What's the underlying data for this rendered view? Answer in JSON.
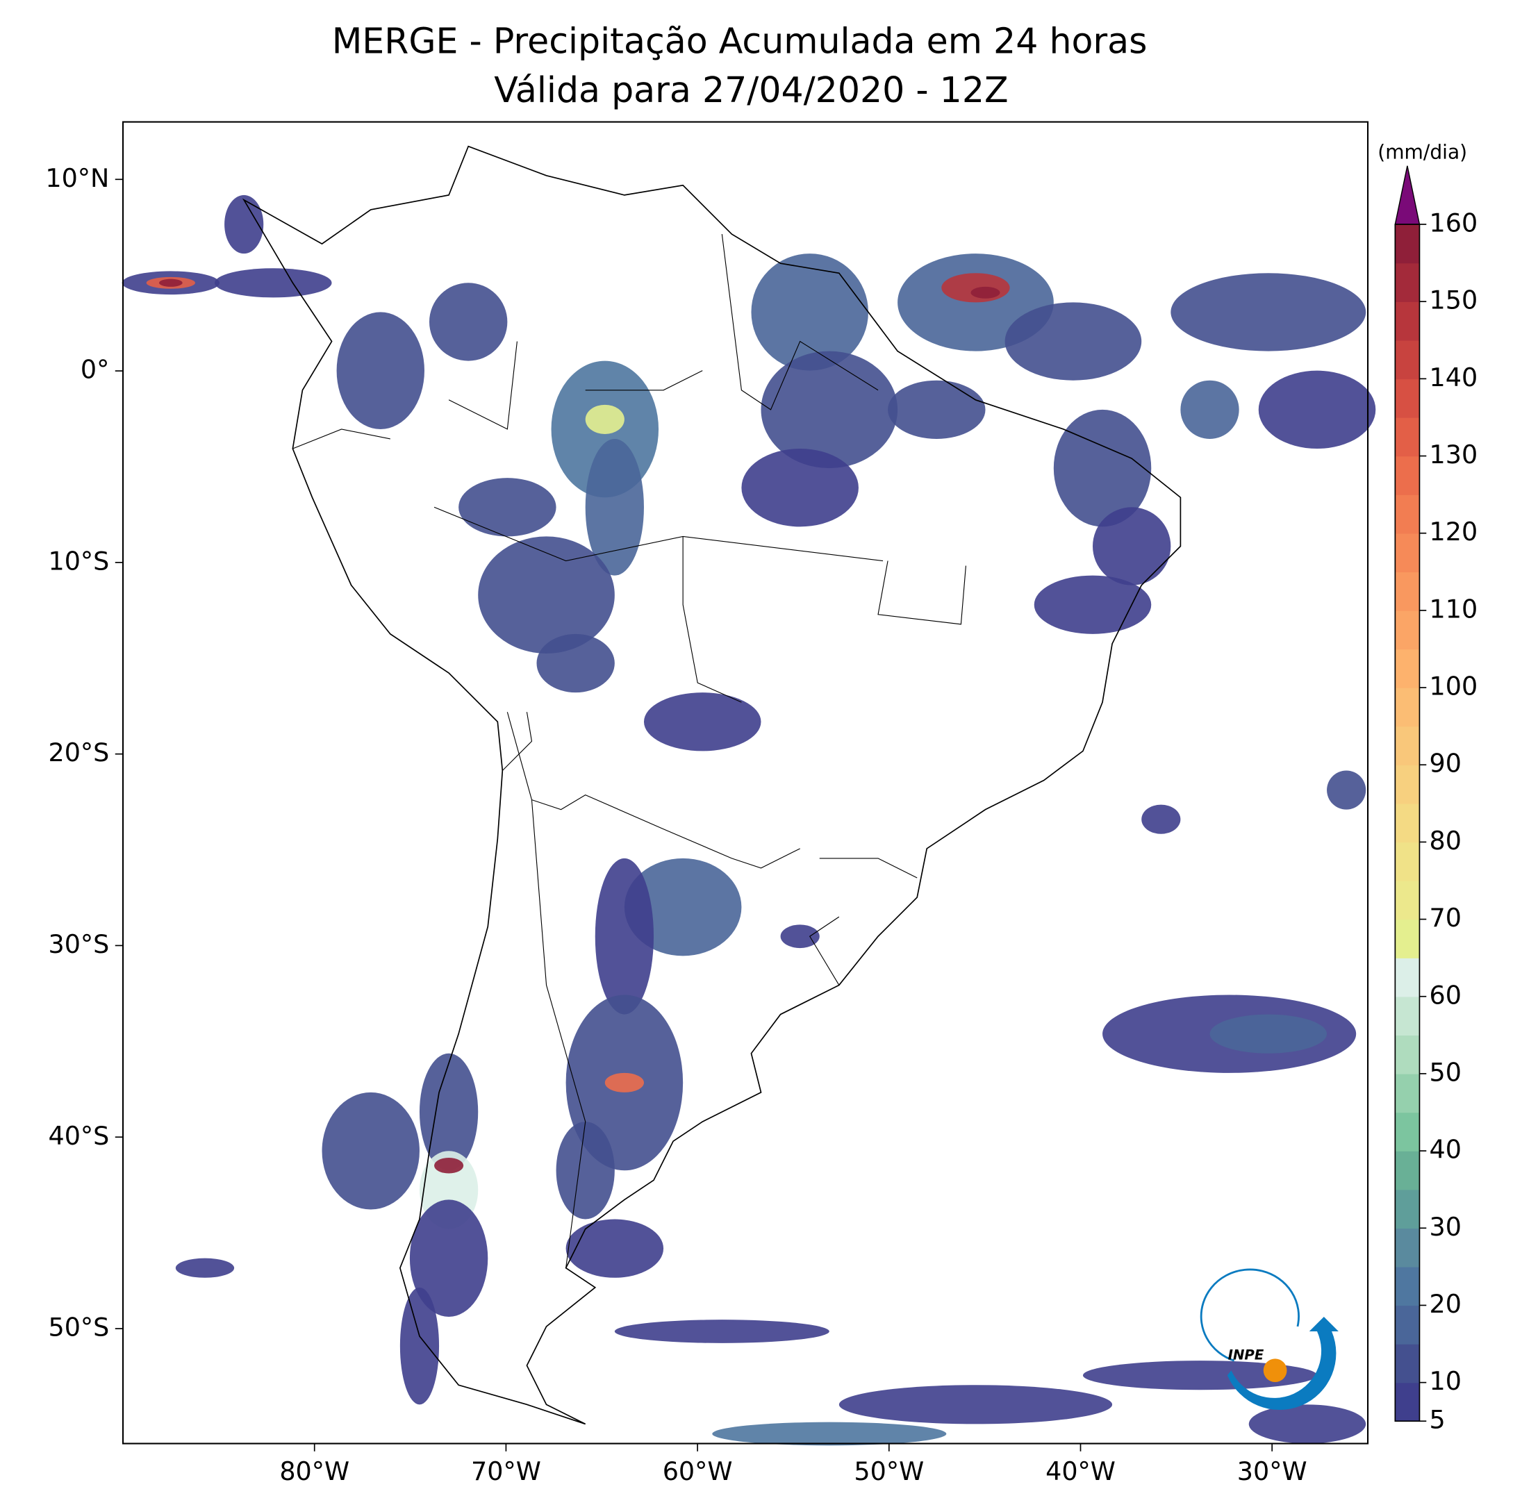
{
  "chart_data": {
    "type": "map",
    "title": "MERGE - Precipitação Acumulada em 24 horas",
    "subtitle": "Válida para 27/04/2020 - 12Z",
    "xlim": [
      -90,
      -25
    ],
    "ylim": [
      -56,
      13
    ],
    "xticks": [
      {
        "value": -80,
        "label": "80°W"
      },
      {
        "value": -70,
        "label": "70°W"
      },
      {
        "value": -60,
        "label": "60°W"
      },
      {
        "value": -50,
        "label": "50°W"
      },
      {
        "value": -40,
        "label": "40°W"
      },
      {
        "value": -30,
        "label": "30°W"
      }
    ],
    "yticks": [
      {
        "value": 10,
        "label": "10°N"
      },
      {
        "value": 0,
        "label": "0°"
      },
      {
        "value": -10,
        "label": "10°S"
      },
      {
        "value": -20,
        "label": "20°S"
      },
      {
        "value": -30,
        "label": "30°S"
      },
      {
        "value": -40,
        "label": "40°S"
      },
      {
        "value": -50,
        "label": "50°S"
      }
    ],
    "colorbar": {
      "label": "(mm/dia)",
      "clim": [
        5,
        160
      ],
      "ticks": [
        5,
        10,
        20,
        30,
        40,
        50,
        60,
        70,
        80,
        90,
        100,
        110,
        120,
        130,
        140,
        150,
        160
      ],
      "colors": [
        "#3f3f8d",
        "#44508f",
        "#4a6699",
        "#4f77a0",
        "#5a8a9e",
        "#5f9e9a",
        "#69b096",
        "#7cc59f",
        "#95d0ad",
        "#afdcbe",
        "#c6e6d2",
        "#dcefe8",
        "#e4ef8f",
        "#ece88c",
        "#f0e288",
        "#f4da84",
        "#f7d07f",
        "#f9c77a",
        "#fbbd74",
        "#fdb26d",
        "#fba566",
        "#f9985f",
        "#f68a58",
        "#f27d52",
        "#ec6e4c",
        "#e35f47",
        "#d75043",
        "#c8433f",
        "#b7363c",
        "#a32a3a",
        "#8f1f39"
      ],
      "extend_color": "#7a0a78"
    },
    "logo_text": "INPE"
  }
}
